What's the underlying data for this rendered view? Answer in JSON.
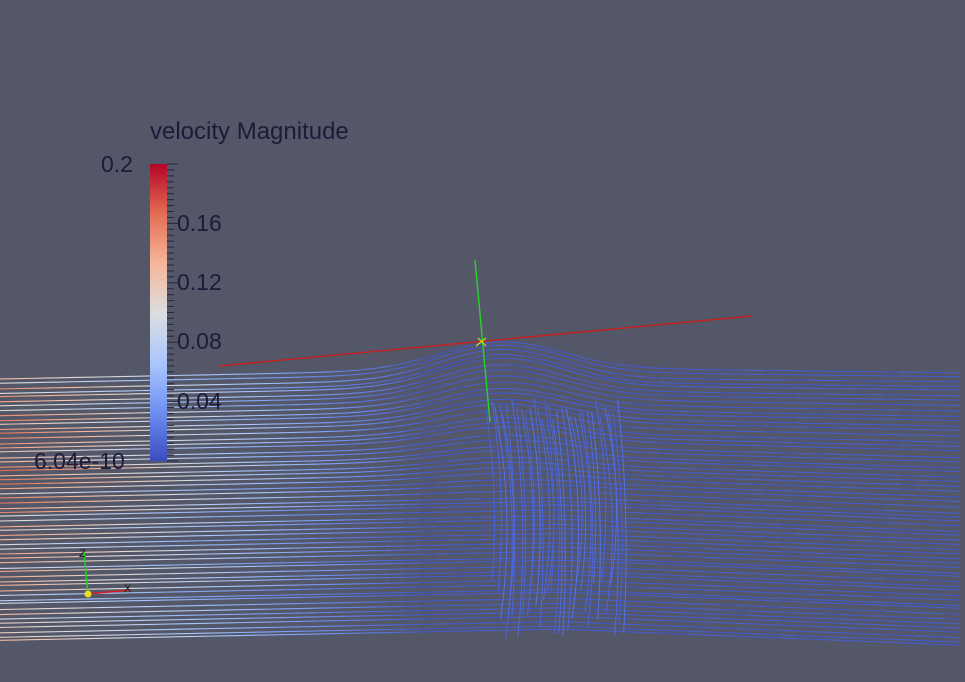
{
  "legend": {
    "title": "velocity Magnitude",
    "max_label": "0.2",
    "min_label": "6.04e-10",
    "tick_labels": [
      "0.16",
      "0.12",
      "0.08",
      "0.04"
    ],
    "range": [
      6.04e-10,
      0.2
    ],
    "colormap": [
      "#3b4cc0",
      "#6f91f2",
      "#aac7fd",
      "#dddddd",
      "#f6b497",
      "#e36e54",
      "#b40426"
    ]
  },
  "orientation_axes": {
    "x_label": "X",
    "z_label": "Z",
    "x_color": "#d42020",
    "y_color": "#e8e020",
    "z_color": "#20d020"
  },
  "scene_axes": {
    "x_color": "#c81f1f",
    "z_color": "#27d427",
    "center_color": "#e0d020"
  },
  "background": "#535767"
}
